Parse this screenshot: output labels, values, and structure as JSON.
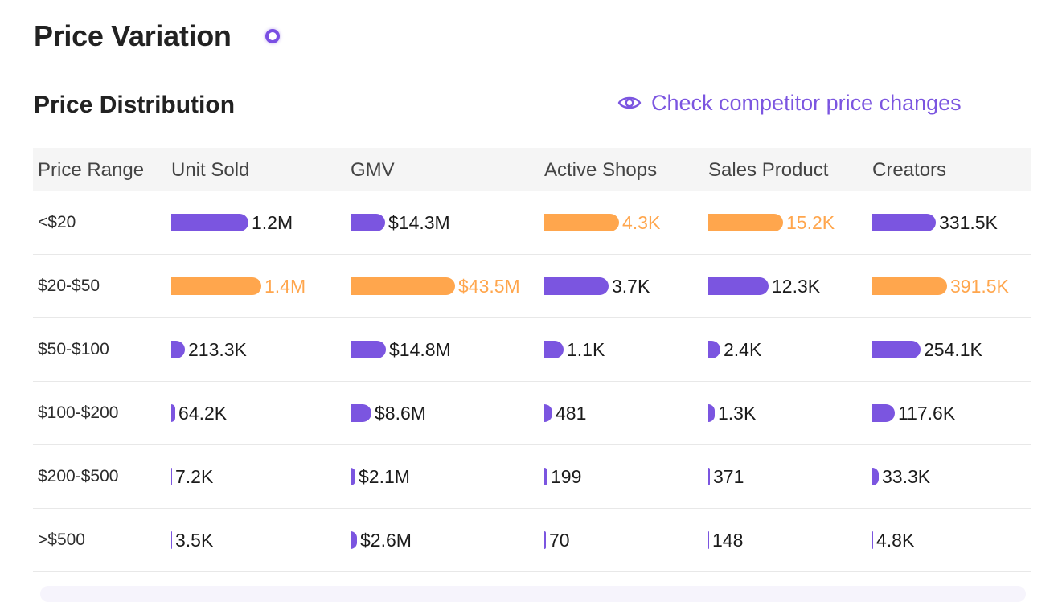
{
  "header": {
    "title": "Price Variation"
  },
  "section": {
    "title": "Price Distribution",
    "competitor_link": "Check competitor price changes",
    "competitor_icon": "eye-icon"
  },
  "colors": {
    "accent_purple": "#7b55e0",
    "highlight_orange": "#ffa64d"
  },
  "table": {
    "headers": [
      "Price Range",
      "Unit Sold",
      "GMV",
      "Active Shops",
      "Sales Product",
      "Creators"
    ],
    "rows": [
      {
        "range": "<$20",
        "cells": [
          {
            "label": "1.2M",
            "value": 1200000,
            "highlight": false
          },
          {
            "label": "$14.3M",
            "value": 14300000,
            "highlight": false
          },
          {
            "label": "4.3K",
            "value": 4300,
            "highlight": true
          },
          {
            "label": "15.2K",
            "value": 15200,
            "highlight": true
          },
          {
            "label": "331.5K",
            "value": 331500,
            "highlight": false
          }
        ]
      },
      {
        "range": "$20-$50",
        "cells": [
          {
            "label": "1.4M",
            "value": 1400000,
            "highlight": true
          },
          {
            "label": "$43.5M",
            "value": 43500000,
            "highlight": true
          },
          {
            "label": "3.7K",
            "value": 3700,
            "highlight": false
          },
          {
            "label": "12.3K",
            "value": 12300,
            "highlight": false
          },
          {
            "label": "391.5K",
            "value": 391500,
            "highlight": true
          }
        ]
      },
      {
        "range": "$50-$100",
        "cells": [
          {
            "label": "213.3K",
            "value": 213300,
            "highlight": false
          },
          {
            "label": "$14.8M",
            "value": 14800000,
            "highlight": false
          },
          {
            "label": "1.1K",
            "value": 1100,
            "highlight": false
          },
          {
            "label": "2.4K",
            "value": 2400,
            "highlight": false
          },
          {
            "label": "254.1K",
            "value": 254100,
            "highlight": false
          }
        ]
      },
      {
        "range": "$100-$200",
        "cells": [
          {
            "label": "64.2K",
            "value": 64200,
            "highlight": false
          },
          {
            "label": "$8.6M",
            "value": 8600000,
            "highlight": false
          },
          {
            "label": "481",
            "value": 481,
            "highlight": false
          },
          {
            "label": "1.3K",
            "value": 1300,
            "highlight": false
          },
          {
            "label": "117.6K",
            "value": 117600,
            "highlight": false
          }
        ]
      },
      {
        "range": "$200-$500",
        "cells": [
          {
            "label": "7.2K",
            "value": 7200,
            "highlight": false
          },
          {
            "label": "$2.1M",
            "value": 2100000,
            "highlight": false
          },
          {
            "label": "199",
            "value": 199,
            "highlight": false
          },
          {
            "label": "371",
            "value": 371,
            "highlight": false
          },
          {
            "label": "33.3K",
            "value": 33300,
            "highlight": false
          }
        ]
      },
      {
        "range": ">$500",
        "cells": [
          {
            "label": "3.5K",
            "value": 3500,
            "highlight": false
          },
          {
            "label": "$2.6M",
            "value": 2600000,
            "highlight": false
          },
          {
            "label": "70",
            "value": 70,
            "highlight": false
          },
          {
            "label": "148",
            "value": 148,
            "highlight": false
          },
          {
            "label": "4.8K",
            "value": 4800,
            "highlight": false
          }
        ]
      }
    ]
  }
}
